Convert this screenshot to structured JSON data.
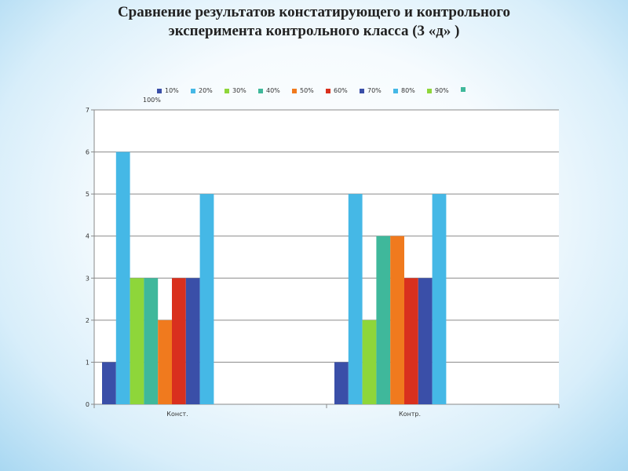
{
  "slide": {
    "title_line1": "Сравнение результатов констатирующего и контрольного",
    "title_line2": "эксперимента контрольного класса (3 «д» )"
  },
  "chart_data": {
    "type": "bar",
    "categories": [
      "Конст.",
      "Контр."
    ],
    "series": [
      {
        "name": "10%",
        "color": "#3a4fa8",
        "values": [
          1,
          1
        ]
      },
      {
        "name": "20%",
        "color": "#45b8e6",
        "values": [
          6,
          5
        ]
      },
      {
        "name": "30%",
        "color": "#8ed63a",
        "values": [
          3,
          2
        ]
      },
      {
        "name": "40%",
        "color": "#3fb89b",
        "values": [
          3,
          4
        ]
      },
      {
        "name": "50%",
        "color": "#f07a1e",
        "values": [
          2,
          4
        ]
      },
      {
        "name": "60%",
        "color": "#d9301e",
        "values": [
          3,
          3
        ]
      },
      {
        "name": "70%",
        "color": "#3a4fa8",
        "values": [
          3,
          3
        ]
      },
      {
        "name": "80%",
        "color": "#45b8e6",
        "values": [
          5,
          5
        ]
      },
      {
        "name": "90%",
        "color": "#8ed63a",
        "values": [
          null,
          null
        ]
      },
      {
        "name": "100%",
        "color": "#3fb89b",
        "values": [
          null,
          null
        ]
      }
    ],
    "ylim": [
      0,
      7
    ],
    "yticks": [
      "0",
      "1",
      "2",
      "3",
      "4",
      "5",
      "6",
      "7"
    ],
    "grid": true,
    "legend": "top",
    "title": "",
    "xlabel": "",
    "ylabel": ""
  }
}
